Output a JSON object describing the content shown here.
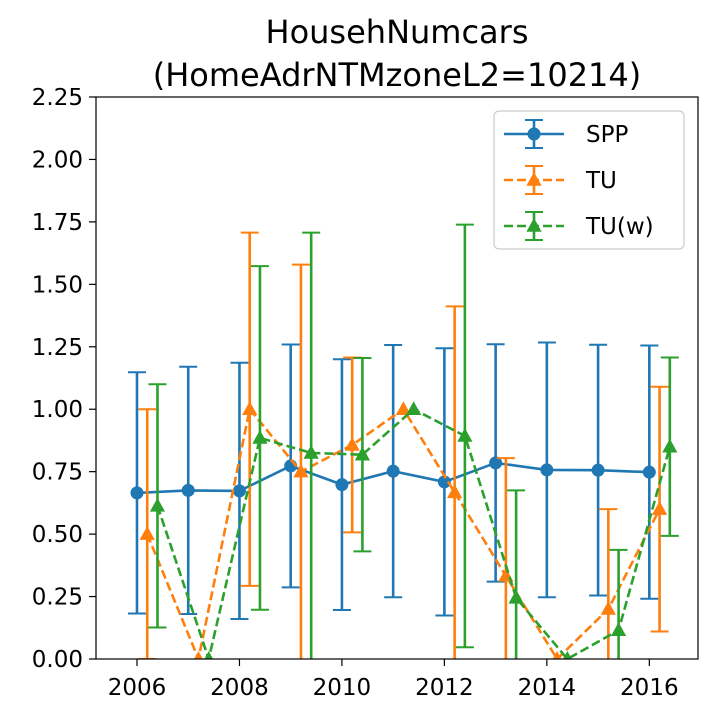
{
  "chart_data": {
    "type": "line",
    "title_lines": [
      "HousehNumcars",
      "(HomeAdrNTMzoneL2=10214)"
    ],
    "xlabel": "",
    "ylabel": "",
    "xlim": [
      2005.2,
      2016.95
    ],
    "ylim": [
      0,
      2.25
    ],
    "x_ticks": [
      2006,
      2008,
      2010,
      2012,
      2014,
      2016
    ],
    "y_ticks": [
      0.0,
      0.25,
      0.5,
      0.75,
      1.0,
      1.25,
      1.5,
      1.75,
      2.0,
      2.25
    ],
    "y_tick_labels": [
      "0.00",
      "0.25",
      "0.50",
      "0.75",
      "1.00",
      "1.25",
      "1.50",
      "1.75",
      "2.00",
      "2.25"
    ],
    "grid": false,
    "legend_position": "top-right",
    "series": [
      {
        "name": "SPP",
        "color": "#1f77b4",
        "linestyle": "solid",
        "marker": "circle",
        "x": [
          2006,
          2007,
          2008,
          2009,
          2010,
          2011,
          2012,
          2013,
          2014,
          2015,
          2016
        ],
        "y": [
          0.665,
          0.675,
          0.673,
          0.773,
          0.698,
          0.752,
          0.709,
          0.785,
          0.757,
          0.756,
          0.748
        ],
        "err": [
          0.483,
          0.495,
          0.513,
          0.486,
          0.502,
          0.505,
          0.535,
          0.475,
          0.51,
          0.502,
          0.507
        ]
      },
      {
        "name": "TU",
        "color": "#ff7f0e",
        "linestyle": "dashed",
        "marker": "triangle-up",
        "x": [
          2006.2,
          2007.2,
          2008.2,
          2009.2,
          2010.2,
          2011.2,
          2012.2,
          2013.2,
          2014.2,
          2015.2,
          2016.2
        ],
        "y": [
          0.5,
          0.0,
          1.0,
          0.75,
          0.857,
          1.0,
          0.667,
          0.333,
          0.0,
          0.2,
          0.6
        ],
        "err": [
          0.5,
          0.0,
          0.707,
          0.829,
          0.35,
          0.0,
          0.745,
          0.471,
          0.0,
          0.4,
          0.49
        ]
      },
      {
        "name": "TU(w)",
        "color": "#2ca02c",
        "linestyle": "dashed",
        "marker": "triangle-up",
        "x": [
          2006.4,
          2007.4,
          2008.4,
          2009.4,
          2010.4,
          2011.4,
          2012.4,
          2013.4,
          2014.4,
          2015.4,
          2016.4
        ],
        "y": [
          0.613,
          0.0,
          0.885,
          0.825,
          0.818,
          1.0,
          0.893,
          0.245,
          0.0,
          0.115,
          0.85
        ],
        "err": [
          0.487,
          0.0,
          0.688,
          0.882,
          0.387,
          0.0,
          0.846,
          0.43,
          0.0,
          0.322,
          0.357
        ]
      }
    ]
  }
}
